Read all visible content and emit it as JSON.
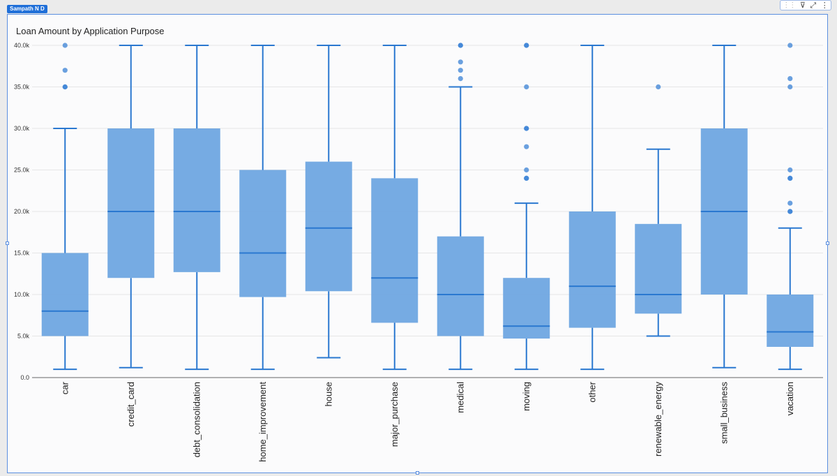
{
  "widget": {
    "author": "Sampath N D"
  },
  "toolbar": {
    "icons": [
      "drag-handle-icon",
      "filter-icon",
      "expand-icon",
      "more-options-icon"
    ],
    "glyphs": [
      "⋮⋮",
      "⊽",
      "⤢",
      "⋮"
    ]
  },
  "colors": {
    "box_fill": "#6fa6e1",
    "line": "#2a78d0",
    "outlier": "#3a82d6",
    "accent": "#1f6fd8"
  },
  "chart_data": {
    "type": "box",
    "title": "Loan Amount by Application Purpose",
    "xlabel": "",
    "ylabel": "",
    "ylim": [
      0,
      40000
    ],
    "yticks": [
      0,
      5000,
      10000,
      15000,
      20000,
      25000,
      30000,
      35000,
      40000
    ],
    "ytick_labels": [
      "0.0",
      "5.0k",
      "10.0k",
      "15.0k",
      "20.0k",
      "25.0k",
      "30.0k",
      "35.0k",
      "40.0k"
    ],
    "grid": true,
    "categories": [
      "car",
      "credit_card",
      "debt_consolidation",
      "home_improvement",
      "house",
      "major_purchase",
      "medical",
      "moving",
      "other",
      "renewable_energy",
      "small_business",
      "vacation"
    ],
    "boxes": [
      {
        "min": 1000,
        "q1": 5000,
        "median": 8000,
        "q3": 15000,
        "max": 30000,
        "outliers": [
          35000,
          35000,
          37000,
          40000
        ]
      },
      {
        "min": 1200,
        "q1": 12000,
        "median": 20000,
        "q3": 30000,
        "max": 40000,
        "outliers": []
      },
      {
        "min": 1000,
        "q1": 12700,
        "median": 20000,
        "q3": 30000,
        "max": 40000,
        "outliers": []
      },
      {
        "min": 1000,
        "q1": 9700,
        "median": 15000,
        "q3": 25000,
        "max": 40000,
        "outliers": []
      },
      {
        "min": 2400,
        "q1": 10400,
        "median": 18000,
        "q3": 26000,
        "max": 40000,
        "outliers": []
      },
      {
        "min": 1000,
        "q1": 6600,
        "median": 12000,
        "q3": 24000,
        "max": 40000,
        "outliers": []
      },
      {
        "min": 1000,
        "q1": 5000,
        "median": 10000,
        "q3": 17000,
        "max": 35000,
        "outliers": [
          36000,
          37000,
          38000,
          40000,
          40000
        ]
      },
      {
        "min": 1000,
        "q1": 4700,
        "median": 6200,
        "q3": 12000,
        "max": 21000,
        "outliers": [
          24000,
          24000,
          25000,
          27800,
          30000,
          30000,
          35000,
          40000,
          40000
        ]
      },
      {
        "min": 1000,
        "q1": 6000,
        "median": 11000,
        "q3": 20000,
        "max": 40000,
        "outliers": []
      },
      {
        "min": 5000,
        "q1": 7700,
        "median": 10000,
        "q3": 18500,
        "max": 27500,
        "outliers": [
          35000
        ]
      },
      {
        "min": 1200,
        "q1": 10000,
        "median": 20000,
        "q3": 30000,
        "max": 40000,
        "outliers": []
      },
      {
        "min": 1000,
        "q1": 3700,
        "median": 5500,
        "q3": 10000,
        "max": 18000,
        "outliers": [
          20000,
          20000,
          21000,
          24000,
          24000,
          25000,
          35000,
          36000,
          40000
        ]
      }
    ]
  }
}
